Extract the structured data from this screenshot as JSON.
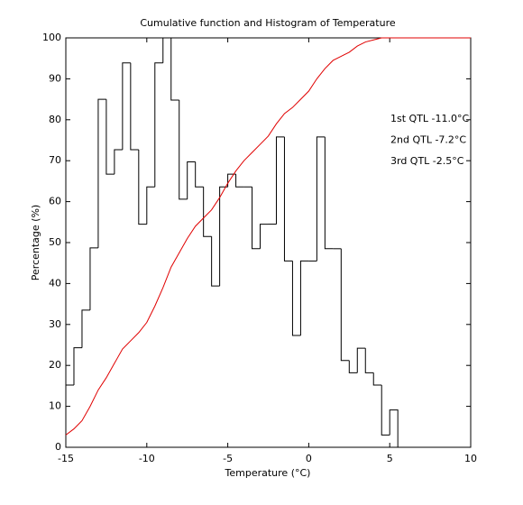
{
  "chart_data": {
    "type": "histogram",
    "title": "Cumulative function and Histogram of Temperature",
    "xlabel": "Temperature (°C)",
    "ylabel": "Percentage (%)",
    "annotations": [
      "1st QTL -11.0°C",
      "2nd QTL -7.2°C",
      "3rd QTL -2.5°C"
    ],
    "annotation_color": "#e00000",
    "bins": [
      -15,
      -14.5,
      -14,
      -13.5,
      -13,
      -12.5,
      -12,
      -11.5,
      -11,
      -10.5,
      -10,
      -9.5,
      -9,
      -8.5,
      -8,
      -7.5,
      -7,
      -6.5,
      -6,
      -5.5,
      -5,
      -4.5,
      -4,
      -3.5,
      -3,
      -2.5,
      -2,
      -1.5,
      -1,
      -0.5,
      0,
      0.5,
      1,
      1.5,
      2,
      2.5,
      3,
      3.5,
      4,
      4.5,
      5,
      5.5
    ],
    "values": [
      15.2,
      24.3,
      33.5,
      48.7,
      85,
      66.7,
      72.7,
      93.9,
      72.7,
      54.5,
      63.6,
      93.9,
      100,
      84.8,
      60.6,
      69.7,
      63.6,
      51.5,
      39.4,
      63.6,
      66.7,
      63.6,
      63.6,
      48.5,
      54.5,
      54.5,
      75.8,
      45.5,
      27.3,
      45.5,
      45.5,
      75.8,
      48.5,
      48.5,
      21.2,
      18.2,
      24.2,
      18.2,
      15.2,
      3,
      9.1
    ],
    "color": "#000000",
    "cumulative": {
      "color": "#e00000",
      "x": [
        -15,
        -14.5,
        -14,
        -13.5,
        -13,
        -12.5,
        -12,
        -11.5,
        -11,
        -10.5,
        -10,
        -9.5,
        -9,
        -8.5,
        -8,
        -7.5,
        -7,
        -6.5,
        -6,
        -5.5,
        -5,
        -4.5,
        -4,
        -3.5,
        -3,
        -2.5,
        -2,
        -1.5,
        -1,
        -0.5,
        0,
        0.5,
        1,
        1.5,
        2,
        2.5,
        3,
        3.5,
        4,
        4.5,
        5,
        10
      ],
      "values": [
        3,
        4.5,
        6.5,
        10,
        14,
        17,
        20.5,
        24,
        26,
        28,
        30.5,
        34.5,
        39,
        44,
        47.5,
        51,
        54,
        56,
        58,
        61,
        64.5,
        67.5,
        70,
        72,
        74,
        76,
        79,
        81.5,
        83,
        85,
        87,
        90,
        92.5,
        94.5,
        95.5,
        96.5,
        98,
        99,
        99.5,
        100,
        100,
        100
      ]
    },
    "xlim": [
      -15,
      10
    ],
    "xticks": [
      -15,
      -10,
      -5,
      0,
      5,
      10
    ],
    "ylim": [
      0,
      100
    ],
    "yticks": [
      0,
      10,
      20,
      30,
      40,
      50,
      60,
      70,
      80,
      90,
      100
    ]
  }
}
